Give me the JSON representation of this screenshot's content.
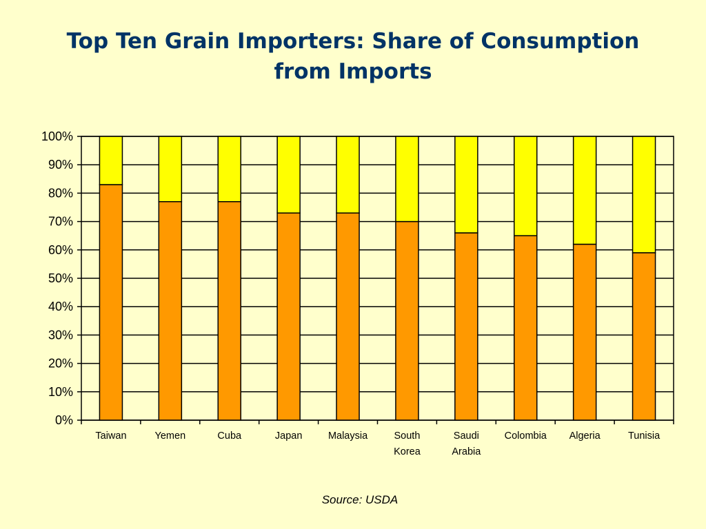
{
  "slide": {
    "title_line1": "Top Ten Grain Importers: Share of Consumption",
    "title_line2": "from Imports",
    "source": "Source: USDA"
  },
  "colors": {
    "background": "#ffffcc",
    "title": "#003366",
    "imports": "#ff9900",
    "remainder": "#ffff00",
    "outline": "#000000"
  },
  "chart_data": {
    "type": "bar",
    "stacked": true,
    "categories": [
      [
        "Taiwan"
      ],
      [
        "Yemen"
      ],
      [
        "Cuba"
      ],
      [
        "Japan"
      ],
      [
        "Malaysia"
      ],
      [
        "South",
        "Korea"
      ],
      [
        "Saudi",
        "Arabia"
      ],
      [
        "Colombia"
      ],
      [
        "Algeria"
      ],
      [
        "Tunisia"
      ]
    ],
    "series": [
      {
        "values": [
          83,
          77,
          77,
          73,
          73,
          70,
          66,
          65,
          62,
          59
        ],
        "color": "#ff9900"
      },
      {
        "values": [
          17,
          23,
          23,
          27,
          27,
          30,
          34,
          35,
          38,
          41
        ],
        "color": "#ffff00"
      }
    ],
    "y_ticks": [
      "0%",
      "10%",
      "20%",
      "30%",
      "40%",
      "50%",
      "60%",
      "70%",
      "80%",
      "90%",
      "100%"
    ],
    "ylim": [
      0,
      100
    ],
    "grid": true,
    "legend": "none"
  }
}
